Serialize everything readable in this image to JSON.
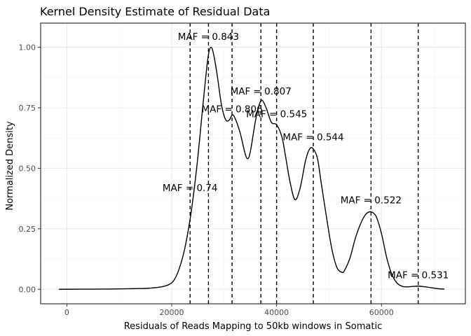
{
  "chart_data": {
    "type": "line",
    "title": "Kernel Density Estimate of Residual Data",
    "xlabel": "Residuals of Reads Mapping to 50kb windows in Somatic",
    "ylabel": "Normalized Density",
    "xlim": [
      -5000,
      76000
    ],
    "ylim": [
      -0.06,
      1.1
    ],
    "x_ticks": [
      0,
      20000,
      40000,
      60000
    ],
    "x_tick_labels": [
      "0",
      "20000",
      "40000",
      "60000"
    ],
    "y_ticks": [
      0,
      0.25,
      0.5,
      0.75,
      1.0
    ],
    "y_tick_labels": [
      "0.00",
      "0.25",
      "0.50",
      "0.75",
      "1.00"
    ],
    "grid": true,
    "series": [
      {
        "x": [
          -1500,
          8000,
          14000,
          16000,
          18000,
          19500,
          20500,
          21500,
          22500,
          23500,
          24200,
          25000,
          25800,
          26500,
          27000,
          27500,
          28000,
          28700,
          29500,
          30300,
          31000,
          31500,
          32000,
          33000,
          34000,
          34500,
          35000,
          36000,
          36800,
          37300,
          38000,
          39000,
          40000,
          41000,
          41700,
          42500,
          43500,
          44500,
          45500,
          46300,
          47000,
          47800,
          48500,
          49500,
          50500,
          51500,
          52500,
          53000,
          54000,
          55000,
          56000,
          57000,
          58000,
          59000,
          60000,
          61000,
          62000,
          63000,
          64000,
          65000,
          66000,
          67000,
          68000,
          69000,
          70000,
          71000,
          72000
        ],
        "y": [
          0.0,
          0.001,
          0.003,
          0.005,
          0.01,
          0.02,
          0.04,
          0.09,
          0.17,
          0.29,
          0.4,
          0.55,
          0.73,
          0.88,
          0.97,
          1.0,
          0.97,
          0.88,
          0.76,
          0.7,
          0.7,
          0.72,
          0.71,
          0.65,
          0.56,
          0.54,
          0.57,
          0.7,
          0.77,
          0.78,
          0.75,
          0.69,
          0.68,
          0.63,
          0.55,
          0.45,
          0.37,
          0.42,
          0.53,
          0.58,
          0.58,
          0.54,
          0.44,
          0.3,
          0.17,
          0.09,
          0.07,
          0.08,
          0.13,
          0.21,
          0.27,
          0.31,
          0.32,
          0.3,
          0.23,
          0.13,
          0.06,
          0.025,
          0.012,
          0.01,
          0.012,
          0.013,
          0.011,
          0.008,
          0.005,
          0.002,
          0.001
        ]
      }
    ],
    "vlines": [
      {
        "x": 23500,
        "label": "MAF = 0.74",
        "label_y": 0.42
      },
      {
        "x": 27000,
        "label": "MAF = 0.843",
        "label_y": 1.045
      },
      {
        "x": 31500,
        "label": "MAF = 0.806",
        "label_y": 0.745
      },
      {
        "x": 37000,
        "label": "MAF = 0.807",
        "label_y": 0.82
      },
      {
        "x": 40000,
        "label": "MAF = 0.545",
        "label_y": 0.725
      },
      {
        "x": 47000,
        "label": "MAF = 0.544",
        "label_y": 0.63
      },
      {
        "x": 58000,
        "label": "MAF = 0.522",
        "label_y": 0.37
      },
      {
        "x": 67000,
        "label": "MAF = 0.531",
        "label_y": 0.06
      }
    ]
  }
}
